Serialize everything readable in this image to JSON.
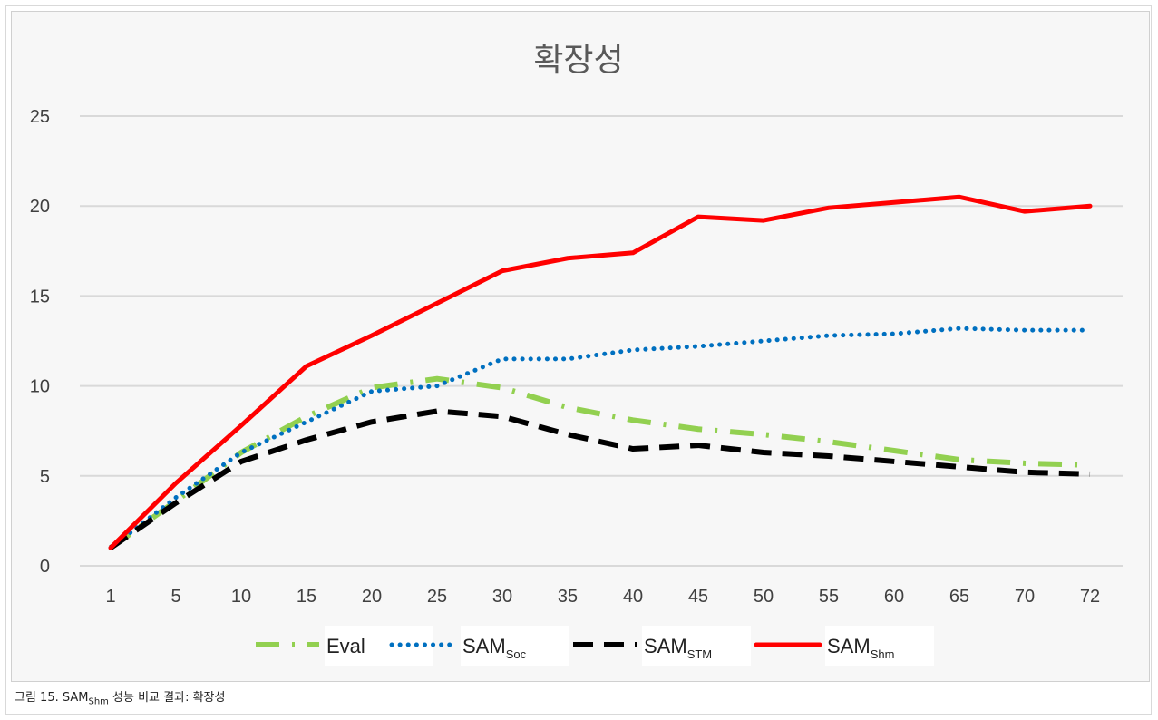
{
  "chart_data": {
    "type": "line",
    "title": "확장성",
    "categories": [
      "1",
      "5",
      "10",
      "15",
      "20",
      "25",
      "30",
      "35",
      "40",
      "45",
      "50",
      "55",
      "60",
      "65",
      "70",
      "72"
    ],
    "ylim": [
      0,
      25
    ],
    "yticks": [
      0,
      5,
      10,
      15,
      20,
      25
    ],
    "grid": true,
    "legend": "bottom",
    "series": [
      {
        "name": "Eval",
        "legend_sub": "",
        "color": "#92d050",
        "dash": "dashdot",
        "values": [
          1,
          3.6,
          6.3,
          8.3,
          9.9,
          10.4,
          9.9,
          8.8,
          8.1,
          7.6,
          7.3,
          6.9,
          6.4,
          5.9,
          5.7,
          5.6
        ]
      },
      {
        "name": "SAM",
        "legend_sub": "Soc",
        "color": "#0070c0",
        "dash": "dot",
        "values": [
          1,
          3.8,
          6.3,
          8.0,
          9.7,
          10.0,
          11.5,
          11.5,
          12.0,
          12.2,
          12.5,
          12.8,
          12.9,
          13.2,
          13.1,
          13.1
        ]
      },
      {
        "name": "SAM",
        "legend_sub": "STM",
        "color": "#000000",
        "dash": "dash",
        "values": [
          1,
          3.5,
          5.8,
          7.0,
          8.0,
          8.6,
          8.3,
          7.3,
          6.5,
          6.7,
          6.3,
          6.1,
          5.8,
          5.5,
          5.2,
          5.1
        ]
      },
      {
        "name": "SAM",
        "legend_sub": "Shm",
        "color": "#ff0000",
        "dash": "solid",
        "values": [
          1,
          4.6,
          7.8,
          11.1,
          12.8,
          14.6,
          16.4,
          17.1,
          17.4,
          19.4,
          19.2,
          19.9,
          20.2,
          20.5,
          19.7,
          20.0
        ]
      }
    ]
  },
  "caption": {
    "prefix": "그림 15. SAM",
    "sub": "Shm",
    "suffix": " 성능 비교 결과: 확장성"
  }
}
